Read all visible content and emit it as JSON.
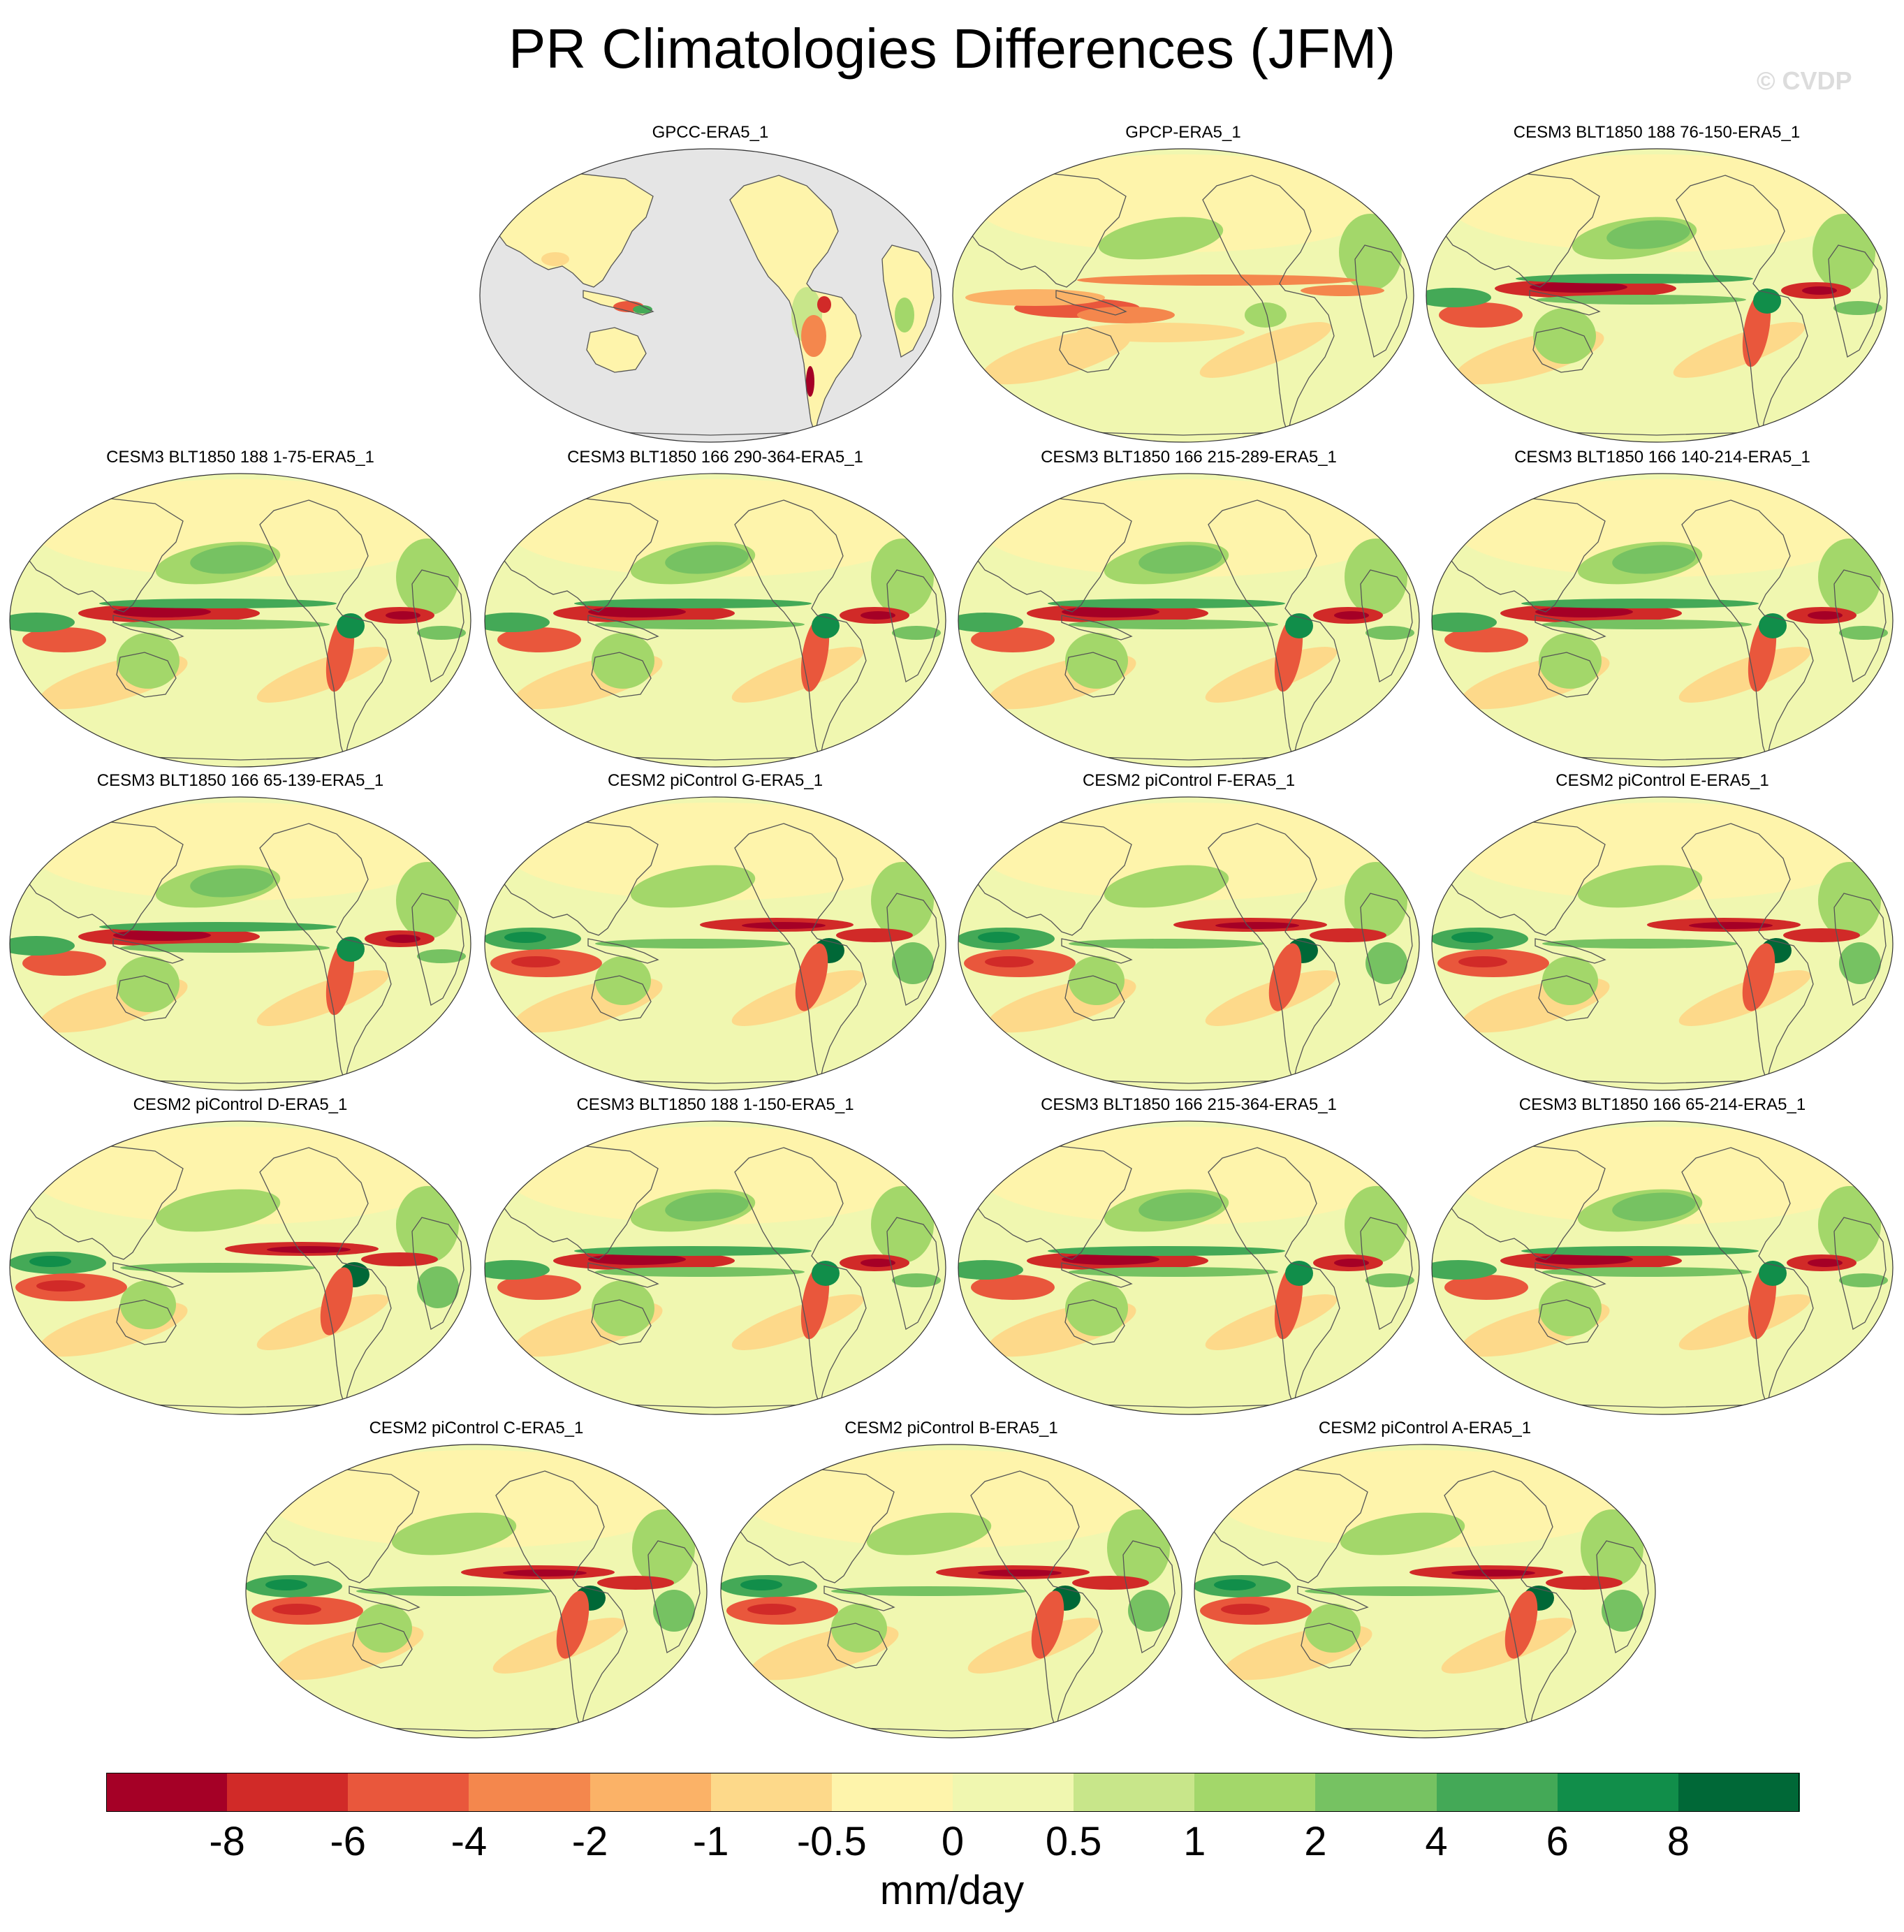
{
  "title": "PR Climatologies Differences (JFM)",
  "watermark": "© CVDP",
  "units": "mm/day",
  "colorbar": {
    "labels": [
      "-8",
      "-6",
      "-4",
      "-2",
      "-1",
      "-0.5",
      "0",
      "0.5",
      "1",
      "2",
      "4",
      "6",
      "8"
    ],
    "colors": [
      "#a50026",
      "#d12a28",
      "#e9573c",
      "#f4874d",
      "#fbb267",
      "#fdd98a",
      "#fef4ab",
      "#f0f7b0",
      "#c8e68a",
      "#a3d76a",
      "#76c262",
      "#44a957",
      "#118e4a",
      "#006837"
    ]
  },
  "panels": [
    {
      "title": "GPCC-ERA5_1",
      "type": "land-only"
    },
    {
      "title": "GPCP-ERA5_1",
      "type": "gpcp"
    },
    {
      "title": "CESM3 BLT1850 188 76-150-ERA5_1",
      "type": "cesm3"
    },
    {
      "title": "CESM3 BLT1850 188 1-75-ERA5_1",
      "type": "cesm3"
    },
    {
      "title": "CESM3 BLT1850 166 290-364-ERA5_1",
      "type": "cesm3"
    },
    {
      "title": "CESM3 BLT1850 166 215-289-ERA5_1",
      "type": "cesm3"
    },
    {
      "title": "CESM3 BLT1850 166 140-214-ERA5_1",
      "type": "cesm3"
    },
    {
      "title": "CESM3 BLT1850 166 65-139-ERA5_1",
      "type": "cesm3"
    },
    {
      "title": "CESM2 piControl G-ERA5_1",
      "type": "cesm2"
    },
    {
      "title": "CESM2 piControl F-ERA5_1",
      "type": "cesm2"
    },
    {
      "title": "CESM2 piControl E-ERA5_1",
      "type": "cesm2"
    },
    {
      "title": "CESM2 piControl D-ERA5_1",
      "type": "cesm2"
    },
    {
      "title": "CESM3 BLT1850 188 1-150-ERA5_1",
      "type": "cesm3"
    },
    {
      "title": "CESM3 BLT1850 166 215-364-ERA5_1",
      "type": "cesm3"
    },
    {
      "title": "CESM3 BLT1850 166 65-214-ERA5_1",
      "type": "cesm3"
    },
    {
      "title": "CESM2 piControl C-ERA5_1",
      "type": "cesm2"
    },
    {
      "title": "CESM2 piControl B-ERA5_1",
      "type": "cesm2"
    },
    {
      "title": "CESM2 piControl A-ERA5_1",
      "type": "cesm2"
    }
  ]
}
